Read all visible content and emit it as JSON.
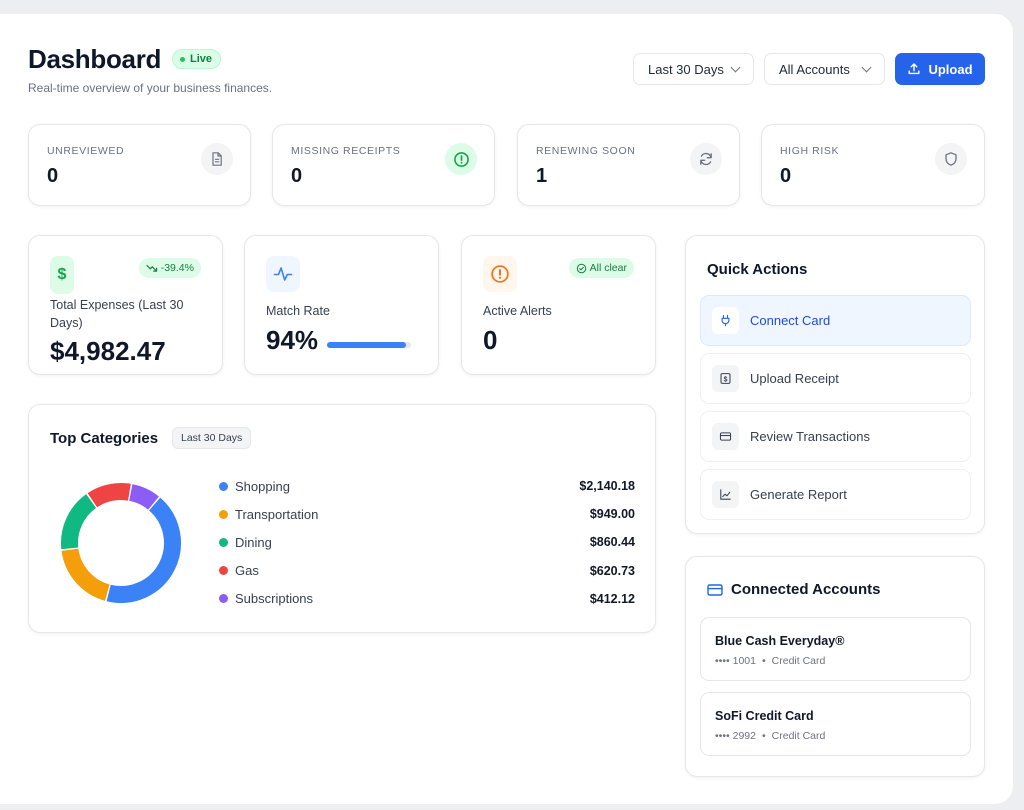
{
  "header": {
    "title": "Dashboard",
    "live_badge": "Live",
    "subtitle": "Real-time overview of your business finances.",
    "date_filter": "Last 30 Days",
    "account_filter": "All Accounts",
    "upload_label": "Upload"
  },
  "stats": [
    {
      "label": "UNREVIEWED",
      "value": "0",
      "icon": "document-icon"
    },
    {
      "label": "MISSING RECEIPTS",
      "value": "0",
      "icon": "alert-circle-icon"
    },
    {
      "label": "RENEWING SOON",
      "value": "1",
      "icon": "refresh-icon"
    },
    {
      "label": "HIGH RISK",
      "value": "0",
      "icon": "shield-icon"
    }
  ],
  "kpis": {
    "expenses": {
      "label": "Total Expenses (Last 30 Days)",
      "value": "$4,982.47",
      "change": "-39.4%"
    },
    "match": {
      "label": "Match Rate",
      "value": "94%",
      "progress": 0.94
    },
    "alerts": {
      "label": "Active Alerts",
      "value": "0",
      "status": "All clear"
    }
  },
  "categories": {
    "title": "Top Categories",
    "period": "Last 30 Days",
    "items": [
      {
        "name": "Shopping",
        "amount": "$2,140.18",
        "value": 2140.18,
        "color": "#3b82f6"
      },
      {
        "name": "Transportation",
        "amount": "$949.00",
        "value": 949.0,
        "color": "#f59e0b"
      },
      {
        "name": "Dining",
        "amount": "$860.44",
        "value": 860.44,
        "color": "#10b981"
      },
      {
        "name": "Gas",
        "amount": "$620.73",
        "value": 620.73,
        "color": "#ef4444"
      },
      {
        "name": "Subscriptions",
        "amount": "$412.12",
        "value": 412.12,
        "color": "#8b5cf6"
      }
    ]
  },
  "quick_actions": {
    "title": "Quick Actions",
    "items": [
      {
        "label": "Connect Card",
        "icon": "plug-icon"
      },
      {
        "label": "Upload Receipt",
        "icon": "receipt-icon"
      },
      {
        "label": "Review Transactions",
        "icon": "credit-card-icon"
      },
      {
        "label": "Generate Report",
        "icon": "chart-line-icon"
      }
    ]
  },
  "accounts": {
    "title": "Connected Accounts",
    "items": [
      {
        "name": "Blue Cash Everyday®",
        "number": "•••• 1001",
        "type": "Credit Card"
      },
      {
        "name": "SoFi Credit Card",
        "number": "•••• 2992",
        "type": "Credit Card"
      }
    ]
  },
  "colors": {
    "accent": "#2563eb",
    "success": "#16a34a",
    "warning": "#f97316"
  }
}
